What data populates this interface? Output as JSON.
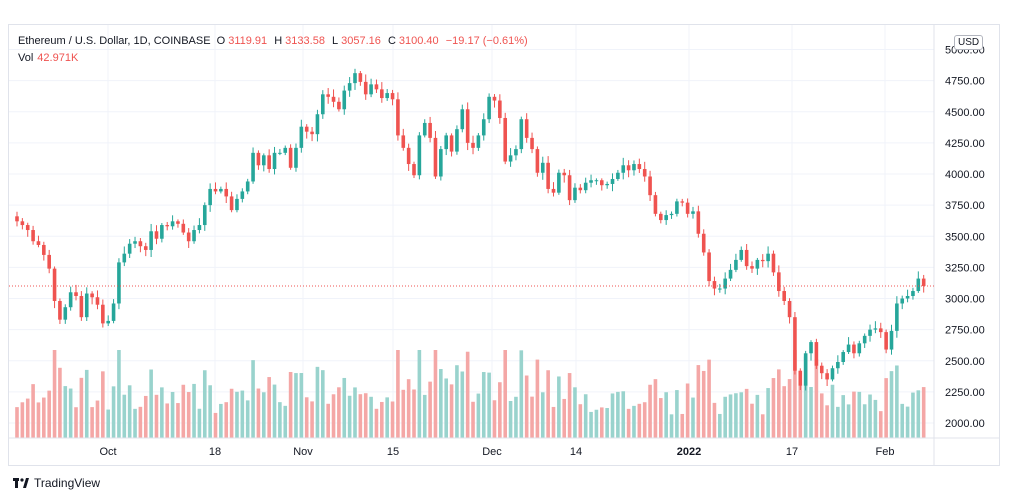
{
  "header": {
    "symbol": "Ethereum / U.S. Dollar, 1D, COINBASE",
    "o_label": "O",
    "o": "3119.91",
    "h_label": "H",
    "h": "3133.58",
    "l_label": "L",
    "l": "3057.16",
    "c_label": "C",
    "c": "3100.40",
    "change": "−19.17 (−0.61%)",
    "vol_label": "Vol",
    "vol": "42.971K"
  },
  "currency": "USD",
  "branding": "TradingView",
  "colors": {
    "up": "#26a69a",
    "down": "#ef5350",
    "up_vol": "#99d3cd",
    "down_vol": "#f4a7a6"
  },
  "chart_data": {
    "type": "candlestick",
    "title": "",
    "yticks": [
      "5000.00",
      "4750.00",
      "4500.00",
      "4250.00",
      "4000.00",
      "3750.00",
      "3500.00",
      "3250.00",
      "3000.00",
      "2750.00",
      "2500.00",
      "2250.00",
      "2000.00"
    ],
    "ylim": [
      2000,
      5000
    ],
    "xticks": [
      "Oct",
      "18",
      "Nov",
      "15",
      "Dec",
      "14",
      "2022",
      "17",
      "Feb"
    ],
    "last_price": 3100.4,
    "closes": [
      3620,
      3590,
      3550,
      3460,
      3430,
      3350,
      3240,
      2980,
      2830,
      2930,
      3050,
      3020,
      2850,
      3040,
      3010,
      2950,
      2800,
      2820,
      2960,
      3290,
      3360,
      3440,
      3460,
      3420,
      3390,
      3540,
      3480,
      3590,
      3580,
      3620,
      3600,
      3530,
      3460,
      3550,
      3590,
      3750,
      3880,
      3860,
      3880,
      3820,
      3710,
      3800,
      3860,
      3940,
      4170,
      4070,
      4150,
      4040,
      4170,
      4170,
      4210,
      4050,
      4210,
      4380,
      4340,
      4320,
      4480,
      4640,
      4620,
      4580,
      4520,
      4670,
      4730,
      4810,
      4740,
      4640,
      4720,
      4680,
      4610,
      4650,
      4600,
      4310,
      4210,
      4080,
      3990,
      4310,
      4410,
      4290,
      3980,
      4200,
      4310,
      4180,
      4360,
      4520,
      4250,
      4210,
      4310,
      4440,
      4620,
      4590,
      4450,
      4100,
      4150,
      4200,
      4440,
      4290,
      4200,
      4010,
      4090,
      3880,
      3850,
      4010,
      3990,
      3790,
      3890,
      3870,
      3930,
      3950,
      3950,
      3910,
      3920,
      3960,
      4010,
      4070,
      4030,
      4080,
      4040,
      3980,
      3830,
      3680,
      3630,
      3670,
      3680,
      3780,
      3770,
      3680,
      3700,
      3520,
      3370,
      3140,
      3080,
      3080,
      3160,
      3230,
      3310,
      3390,
      3260,
      3240,
      3310,
      3300,
      3360,
      3210,
      3060,
      2980,
      2850,
      2420,
      2300,
      2560,
      2650,
      2460,
      2400,
      2350,
      2440,
      2490,
      2570,
      2630,
      2560,
      2640,
      2700,
      2750,
      2760,
      2730,
      2590,
      2740,
      2960,
      3000,
      3020,
      3060,
      3160,
      3100
    ],
    "x_start": 17,
    "x_step": 5.365
  }
}
